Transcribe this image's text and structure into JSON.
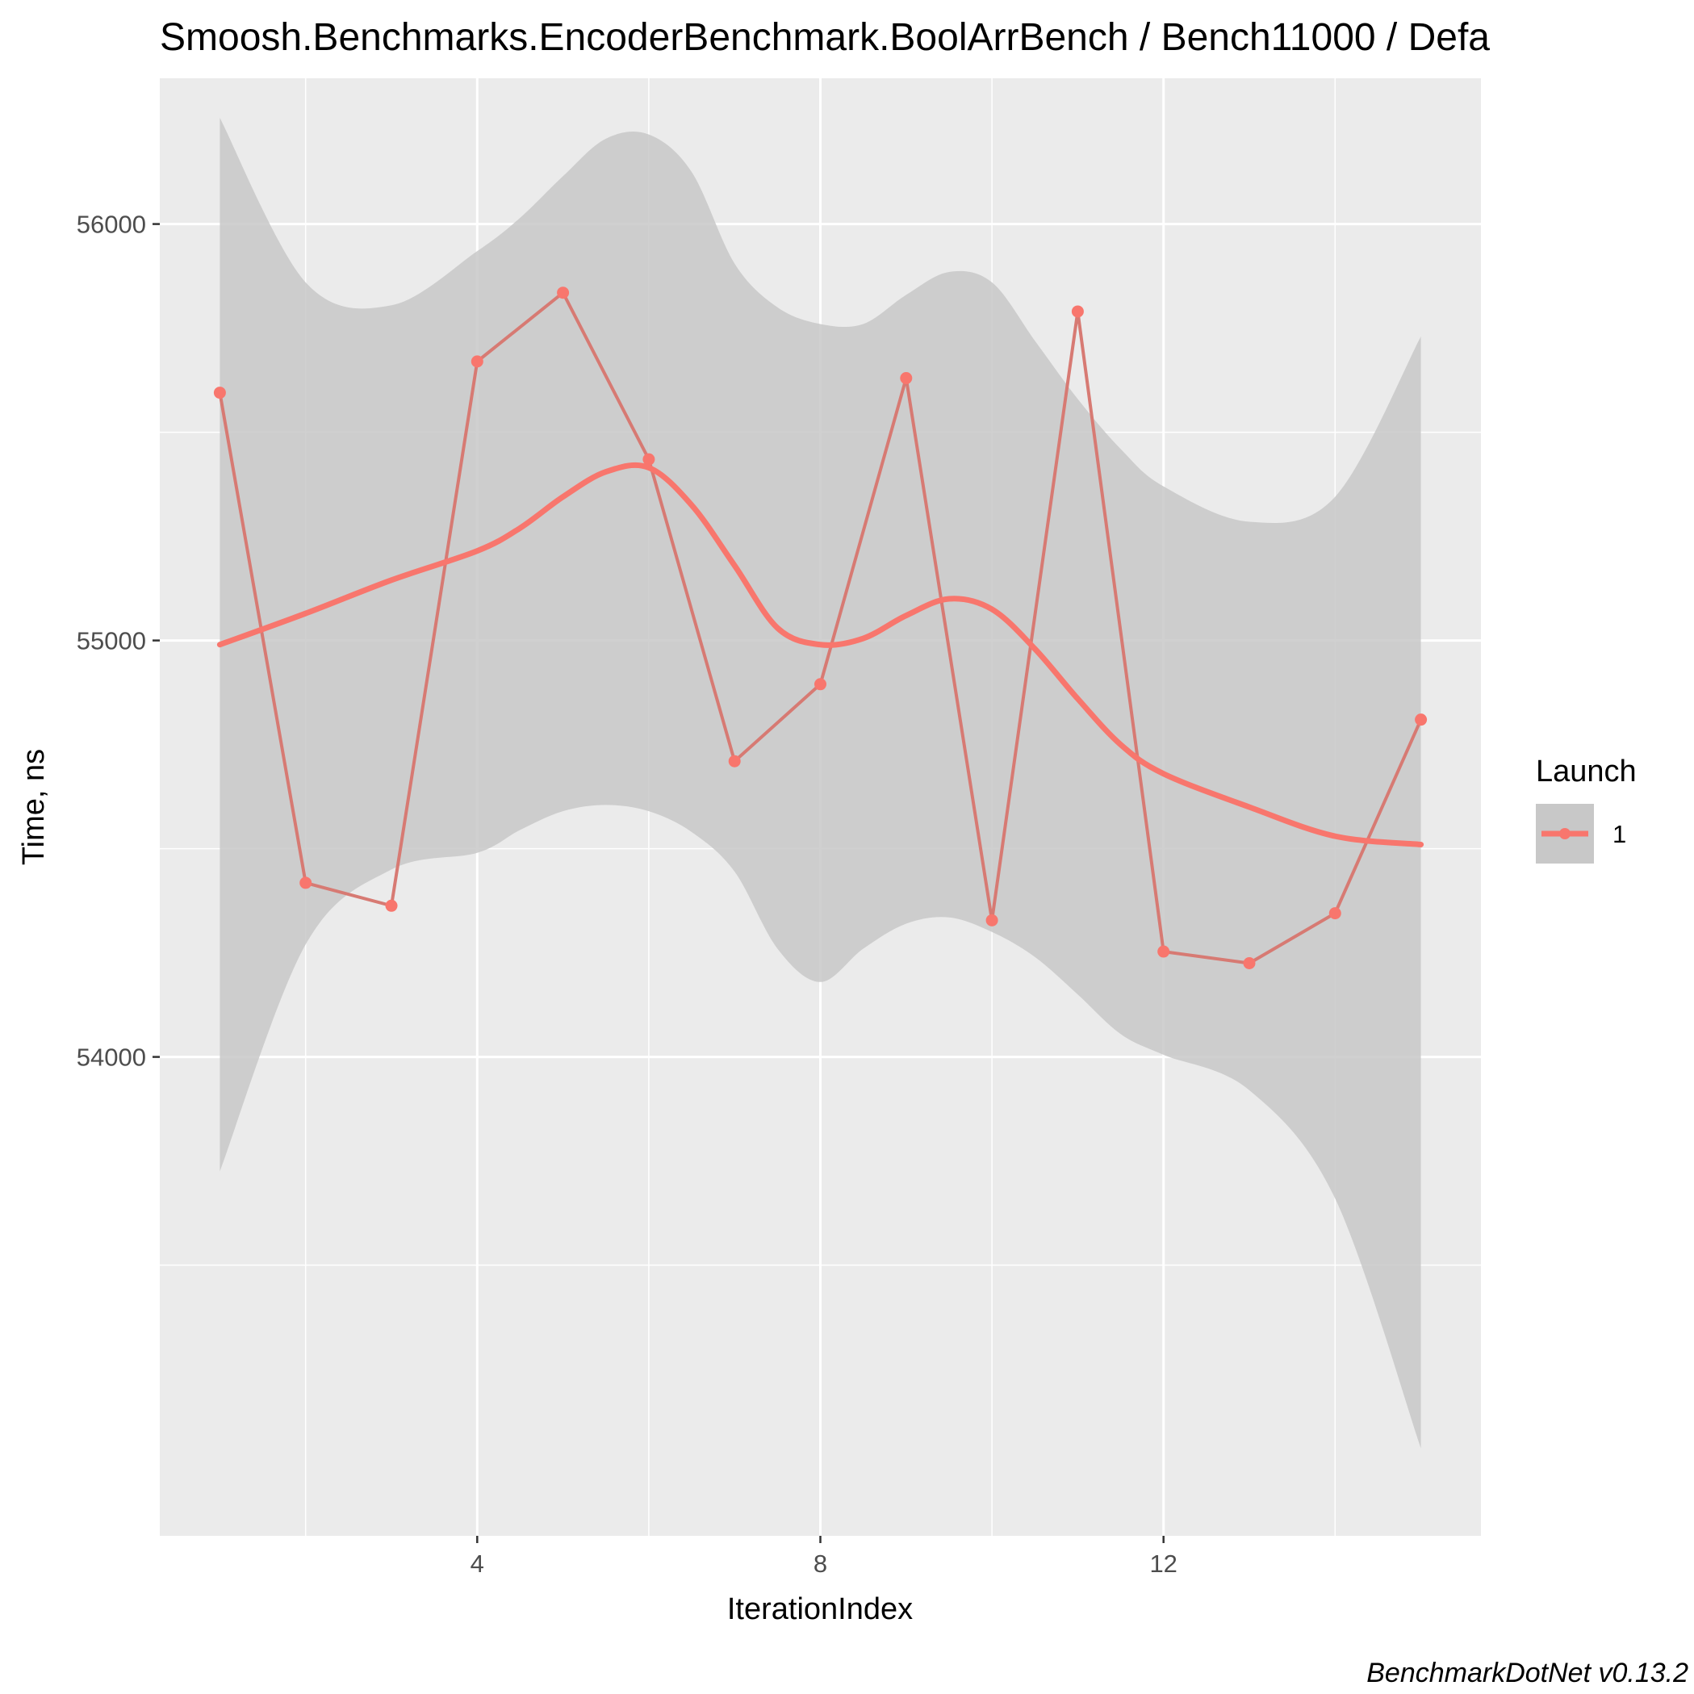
{
  "chart_data": {
    "type": "line",
    "title": "Smoosh.Benchmarks.EncoderBenchmark.BoolArrBench / Bench11000 / Defa",
    "xlabel": "IterationIndex",
    "ylabel": "Time, ns",
    "caption": "BenchmarkDotNet v0.13.2",
    "xlim": [
      0.3,
      15.7
    ],
    "ylim": [
      52850,
      56350
    ],
    "x_ticks": [
      4,
      8,
      12
    ],
    "x_tick_labels": [
      "4",
      "8",
      "12"
    ],
    "y_ticks": [
      54000,
      55000,
      56000
    ],
    "y_tick_labels": [
      "54000",
      "55000",
      "56000"
    ],
    "grid": true,
    "legend": {
      "title": "Launch",
      "position": "right",
      "entries": [
        "1"
      ]
    },
    "colors": {
      "series": "#F8766D",
      "ribbon": "#C8C8C8",
      "panel": "#EBEBEB",
      "grid": "#FFFFFF"
    },
    "series": [
      {
        "name": "1",
        "x": [
          1,
          2,
          3,
          4,
          5,
          6,
          7,
          8,
          9,
          10,
          11,
          12,
          13,
          14,
          15
        ],
        "values": [
          55595,
          54418,
          54363,
          55670,
          55835,
          55435,
          54710,
          54895,
          55630,
          54328,
          55790,
          54253,
          54225,
          54345,
          54810
        ]
      }
    ],
    "smooth": {
      "x": [
        1,
        2,
        3,
        4,
        4.5,
        5,
        5.5,
        6,
        6.5,
        7,
        7.5,
        8,
        8.5,
        9,
        9.5,
        10,
        10.5,
        11,
        11.5,
        12,
        13,
        14,
        15
      ],
      "y": [
        54990,
        55065,
        55145,
        55215,
        55270,
        55345,
        55405,
        55415,
        55325,
        55180,
        55030,
        54990,
        55005,
        55060,
        55100,
        55075,
        54980,
        54860,
        54750,
        54680,
        54600,
        54530,
        54510
      ],
      "lower": [
        53725,
        54270,
        54450,
        54490,
        54545,
        54590,
        54605,
        54590,
        54540,
        54445,
        54260,
        54180,
        54260,
        54320,
        54335,
        54300,
        54240,
        54150,
        54055,
        54005,
        53920,
        53660,
        53060
      ],
      "upper": [
        56255,
        55860,
        55805,
        55935,
        56015,
        56115,
        56205,
        56215,
        56125,
        55905,
        55800,
        55760,
        55760,
        55830,
        55885,
        55860,
        55720,
        55580,
        55460,
        55370,
        55285,
        55345,
        55730
      ]
    }
  }
}
